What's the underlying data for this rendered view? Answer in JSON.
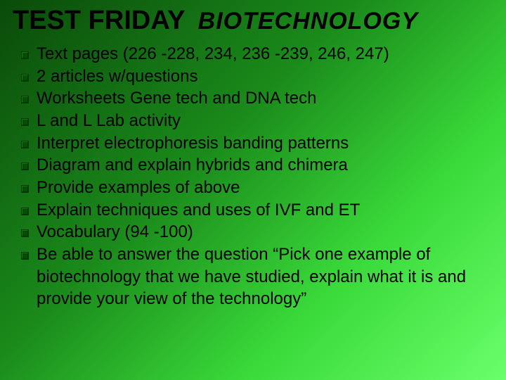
{
  "title": {
    "main": "TEST FRIDAY",
    "sub": "BIOTECHNOLOGY"
  },
  "bullets": [
    "Text pages (226 -228, 234, 236 -239, 246, 247)",
    "2 articles w/questions",
    "Worksheets Gene tech and DNA tech",
    "L and L Lab activity",
    "Interpret electrophoresis banding patterns",
    "Diagram and explain hybrids and chimera",
    "Provide examples of above",
    "Explain techniques and uses of IVF and ET",
    "Vocabulary (94 -100)",
    "Be able to answer the question “Pick one example of biotechnology that we have studied, explain what it is and provide your view of the technology”"
  ],
  "style": {
    "background_gradient": [
      "#0a4a0a",
      "#1a8a1a",
      "#3ada3a",
      "#6aff6a"
    ],
    "bullet_color": "#005000",
    "text_color": "#000000",
    "title_main_fontsize": 38,
    "title_sub_fontsize": 34,
    "body_fontsize": 24,
    "title_main_weight": 900,
    "title_sub_weight": 900,
    "title_sub_italic": true
  }
}
